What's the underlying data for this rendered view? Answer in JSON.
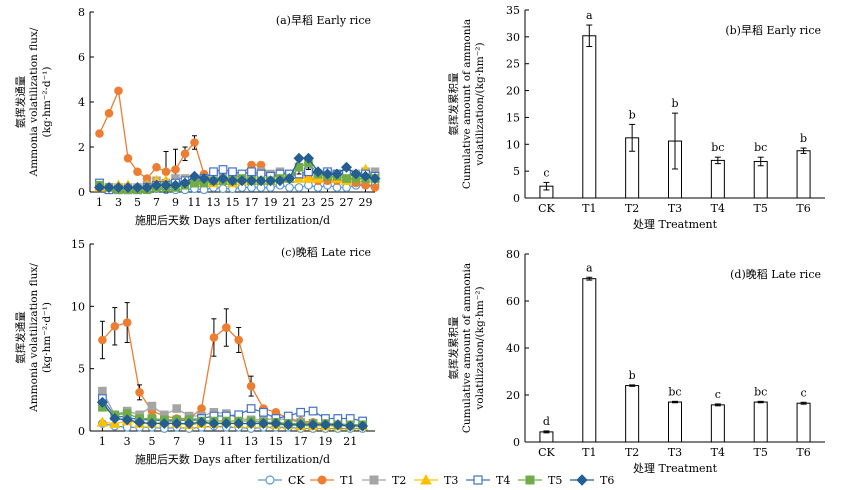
{
  "colors": {
    "CK": "#5b9bd5",
    "T1": "#ed7d31",
    "T2": "#a5a5a5",
    "T3": "#ffc000",
    "T4": "#4472c4",
    "T5": "#70ad47",
    "T6": "#255e91",
    "axis": "#000000",
    "bar_fill": "#ffffff"
  },
  "legend": {
    "items": [
      {
        "name": "CK",
        "marker": "circle-open"
      },
      {
        "name": "T1",
        "marker": "circle-filled"
      },
      {
        "name": "T2",
        "marker": "square-filled"
      },
      {
        "name": "T3",
        "marker": "triangle-filled"
      },
      {
        "name": "T4",
        "marker": "square-open"
      },
      {
        "name": "T5",
        "marker": "square-filled"
      },
      {
        "name": "T6",
        "marker": "diamond-filled"
      }
    ],
    "placement": "bottom-center"
  },
  "chart_data": [
    {
      "id": "a",
      "type": "line",
      "title": "(a)早稻 Early rice",
      "xlabel": "施肥后天数 Days after fertilization/d",
      "ylabel": [
        "氨挥发通量",
        "Ammonia volatilization flux/",
        "(kg·hm⁻²·d⁻¹)"
      ],
      "xlim": [
        0,
        30
      ],
      "ylim": [
        0,
        8
      ],
      "yticks": [
        0,
        2,
        4,
        6,
        8
      ],
      "xticks": [
        1,
        3,
        5,
        7,
        9,
        11,
        13,
        15,
        17,
        19,
        21,
        23,
        25,
        27,
        29
      ],
      "legend_placement": "bottom-center",
      "series": [
        {
          "name": "CK",
          "x": [
            1,
            2,
            3,
            4,
            5,
            6,
            7,
            8,
            9,
            10,
            11,
            12,
            13,
            14,
            15,
            16,
            17,
            18,
            19,
            20,
            21,
            22,
            23,
            24,
            25,
            26,
            27,
            28,
            29,
            30
          ],
          "values": [
            0.2,
            0.15,
            0.1,
            0.1,
            0.1,
            0.1,
            0.15,
            0.1,
            0.1,
            0.1,
            0.15,
            0.1,
            0.2,
            0.15,
            0.15,
            0.2,
            0.2,
            0.2,
            0.2,
            0.3,
            0.2,
            0.2,
            0.3,
            0.2,
            0.3,
            0.2,
            0.2,
            0.3,
            0.3,
            0.3
          ]
        },
        {
          "name": "T1",
          "x": [
            1,
            2,
            3,
            4,
            5,
            6,
            7,
            8,
            9,
            10,
            11,
            12,
            13,
            14,
            15,
            16,
            17,
            18,
            19,
            20,
            21,
            22,
            23,
            24,
            25,
            26,
            27,
            28,
            29,
            30
          ],
          "values": [
            2.6,
            3.5,
            4.5,
            1.5,
            0.9,
            0.6,
            1.1,
            0.9,
            1.0,
            1.7,
            2.2,
            0.8,
            0.5,
            0.5,
            0.6,
            0.8,
            1.2,
            1.2,
            0.7,
            0.7,
            0.6,
            0.9,
            0.6,
            0.5,
            0.5,
            0.5,
            0.5,
            0.4,
            0.3,
            0.2
          ],
          "errors": [
            0,
            0,
            0,
            0,
            0,
            0,
            0,
            0.9,
            0.9,
            0.3,
            0.3,
            0,
            0,
            0,
            0,
            0,
            0,
            0,
            0,
            0,
            0,
            0,
            0,
            0,
            0,
            0,
            0,
            0,
            0,
            0
          ]
        },
        {
          "name": "T2",
          "x": [
            1,
            2,
            3,
            4,
            5,
            6,
            7,
            8,
            9,
            10,
            11,
            12,
            13,
            14,
            15,
            16,
            17,
            18,
            19,
            20,
            21,
            22,
            23,
            24,
            25,
            26,
            27,
            28,
            29,
            30
          ],
          "values": [
            0.3,
            0.2,
            0.2,
            0.2,
            0.2,
            0.3,
            0.5,
            0.4,
            0.6,
            0.6,
            0.5,
            0.4,
            0.5,
            0.7,
            0.6,
            0.6,
            0.6,
            0.9,
            0.8,
            0.9,
            0.8,
            0.8,
            0.9,
            0.7,
            0.8,
            0.8,
            0.7,
            0.8,
            0.9,
            0.9
          ]
        },
        {
          "name": "T3",
          "x": [
            1,
            2,
            3,
            4,
            5,
            6,
            7,
            8,
            9,
            10,
            11,
            12,
            13,
            14,
            15,
            16,
            17,
            18,
            19,
            20,
            21,
            22,
            23,
            24,
            25,
            26,
            27,
            28,
            29,
            30
          ],
          "values": [
            0.2,
            0.2,
            0.3,
            0.3,
            0.2,
            0.3,
            0.5,
            0.5,
            0.4,
            0.5,
            0.5,
            0.4,
            0.4,
            0.5,
            0.4,
            0.5,
            0.6,
            0.5,
            0.5,
            0.6,
            0.6,
            0.6,
            0.6,
            0.6,
            0.7,
            0.6,
            0.5,
            0.6,
            1.0,
            0.6
          ]
        },
        {
          "name": "T4",
          "x": [
            1,
            2,
            3,
            4,
            5,
            6,
            7,
            8,
            9,
            10,
            11,
            12,
            13,
            14,
            15,
            16,
            17,
            18,
            19,
            20,
            21,
            22,
            23,
            24,
            25,
            26,
            27,
            28,
            29,
            30
          ],
          "values": [
            0.4,
            0.1,
            0.1,
            0.1,
            0.1,
            0.2,
            0.3,
            0.3,
            0.4,
            0.5,
            0.4,
            0.6,
            0.9,
            1.0,
            0.9,
            0.8,
            0.9,
            0.8,
            0.7,
            0.8,
            0.8,
            0.8,
            0.9,
            0.8,
            0.9,
            0.8,
            0.8,
            0.7,
            0.8,
            0.7
          ]
        },
        {
          "name": "T5",
          "x": [
            1,
            2,
            3,
            4,
            5,
            6,
            7,
            8,
            9,
            10,
            11,
            12,
            13,
            14,
            15,
            16,
            17,
            18,
            19,
            20,
            21,
            22,
            23,
            24,
            25,
            26,
            27,
            28,
            29,
            30
          ],
          "values": [
            0.3,
            0.2,
            0.1,
            0.1,
            0.1,
            0.1,
            0.2,
            0.2,
            0.2,
            0.3,
            0.4,
            0.4,
            0.5,
            0.5,
            0.5,
            0.6,
            0.5,
            0.5,
            0.5,
            0.6,
            0.6,
            1.1,
            1.3,
            0.8,
            0.7,
            0.7,
            0.6,
            0.6,
            0.6,
            0.6
          ],
          "errors": [
            0,
            0,
            0,
            0,
            0,
            0,
            0,
            0,
            0,
            0,
            0,
            0,
            0,
            0,
            0,
            0,
            0,
            0,
            0,
            0,
            0,
            0.3,
            0.3,
            0,
            0,
            0,
            0,
            0,
            0,
            0
          ]
        },
        {
          "name": "T6",
          "x": [
            1,
            2,
            3,
            4,
            5,
            6,
            7,
            8,
            9,
            10,
            11,
            12,
            13,
            14,
            15,
            16,
            17,
            18,
            19,
            20,
            21,
            22,
            23,
            24,
            25,
            26,
            27,
            28,
            29,
            30
          ],
          "values": [
            0.2,
            0.2,
            0.2,
            0.2,
            0.2,
            0.2,
            0.3,
            0.3,
            0.3,
            0.4,
            0.7,
            0.6,
            0.5,
            0.6,
            0.5,
            0.5,
            0.5,
            0.5,
            0.5,
            0.5,
            0.6,
            1.5,
            1.5,
            0.9,
            0.8,
            0.8,
            1.1,
            0.8,
            0.7,
            0.6
          ]
        }
      ]
    },
    {
      "id": "b",
      "type": "bar",
      "title": "(b)早稻 Early rice",
      "xlabel": "处理 Treatment",
      "ylabel": [
        "氨挥发累积量",
        "Cumulative amount of ammonia",
        "volatilization/(kg·hm⁻²)"
      ],
      "ylim": [
        0,
        35
      ],
      "yticks": [
        0,
        5,
        10,
        15,
        20,
        25,
        30,
        35
      ],
      "categories": [
        "CK",
        "T1",
        "T2",
        "T3",
        "T4",
        "T5",
        "T6"
      ],
      "values": [
        2.2,
        30.2,
        11.2,
        10.6,
        7.0,
        6.8,
        8.8
      ],
      "errors": [
        0.7,
        2.0,
        2.5,
        5.2,
        0.6,
        0.8,
        0.5
      ],
      "letters": [
        "c",
        "a",
        "b",
        "b",
        "bc",
        "bc",
        "b"
      ]
    },
    {
      "id": "c",
      "type": "line",
      "title": "(c)晚稻 Late rice",
      "xlabel": "施肥后天数 Days after fertilization/d",
      "ylabel": [
        "氨挥发通量",
        "Ammonia volatilization flux/",
        "(kg·hm⁻²·d⁻¹)"
      ],
      "xlim": [
        0,
        23
      ],
      "ylim": [
        0,
        15
      ],
      "yticks": [
        0,
        5,
        10,
        15
      ],
      "xticks": [
        1,
        3,
        5,
        7,
        9,
        11,
        13,
        15,
        17,
        19,
        21
      ],
      "legend_placement": "bottom-center",
      "series": [
        {
          "name": "CK",
          "x": [
            1,
            2,
            3,
            4,
            5,
            6,
            7,
            8,
            9,
            10,
            11,
            12,
            13,
            14,
            15,
            16,
            17,
            18,
            19,
            20,
            21,
            22
          ],
          "values": [
            0.6,
            0.4,
            0.3,
            0.3,
            0.3,
            0.2,
            0.3,
            0.2,
            0.3,
            0.4,
            0.3,
            0.3,
            0.2,
            0.3,
            0.3,
            0.3,
            0.2,
            0.2,
            0.2,
            0.2,
            0.2,
            0.2
          ]
        },
        {
          "name": "T1",
          "x": [
            1,
            2,
            3,
            4,
            5,
            6,
            7,
            8,
            9,
            10,
            11,
            12,
            13,
            14,
            15,
            16,
            17,
            18,
            19,
            20,
            21,
            22
          ],
          "values": [
            7.3,
            8.4,
            8.7,
            3.1,
            1.6,
            1.2,
            1.0,
            1.0,
            1.8,
            7.5,
            8.3,
            7.3,
            3.6,
            1.8,
            1.5,
            1.0,
            0.8,
            0.7,
            0.6,
            0.6,
            0.5,
            0.5
          ],
          "errors": [
            1.5,
            1.5,
            1.6,
            0.6,
            0.3,
            0,
            0,
            0,
            0,
            1.5,
            1.5,
            1.0,
            0.8,
            0,
            0,
            0,
            0,
            0,
            0,
            0,
            0,
            0
          ]
        },
        {
          "name": "T2",
          "x": [
            1,
            2,
            3,
            4,
            5,
            6,
            7,
            8,
            9,
            10,
            11,
            12,
            13,
            14,
            15,
            16,
            17,
            18,
            19,
            20,
            21,
            22
          ],
          "values": [
            3.2,
            1.3,
            1.6,
            1.3,
            2.0,
            1.3,
            1.8,
            1.2,
            1.2,
            1.5,
            1.4,
            1.0,
            0.9,
            0.9,
            1.0,
            0.9,
            0.7,
            0.6,
            0.6,
            0.6,
            0.5,
            0.5
          ]
        },
        {
          "name": "T3",
          "x": [
            1,
            2,
            3,
            4,
            5,
            6,
            7,
            8,
            9,
            10,
            11,
            12,
            13,
            14,
            15,
            16,
            17,
            18,
            19,
            20,
            21,
            22
          ],
          "values": [
            0.7,
            0.6,
            0.8,
            0.6,
            0.6,
            0.7,
            0.6,
            0.5,
            0.6,
            0.6,
            0.7,
            0.6,
            0.6,
            0.6,
            0.5,
            0.5,
            0.4,
            0.4,
            0.4,
            0.4,
            0.4,
            0.4
          ]
        },
        {
          "name": "T4",
          "x": [
            1,
            2,
            3,
            4,
            5,
            6,
            7,
            8,
            9,
            10,
            11,
            12,
            13,
            14,
            15,
            16,
            17,
            18,
            19,
            20,
            21,
            22
          ],
          "values": [
            2.6,
            1.2,
            1.1,
            0.9,
            0.9,
            0.8,
            0.8,
            0.9,
            1.0,
            1.2,
            1.2,
            1.3,
            1.8,
            1.5,
            1.0,
            1.2,
            1.5,
            1.6,
            1.0,
            1.0,
            1.0,
            0.8
          ]
        },
        {
          "name": "T5",
          "x": [
            1,
            2,
            3,
            4,
            5,
            6,
            7,
            8,
            9,
            10,
            11,
            12,
            13,
            14,
            15,
            16,
            17,
            18,
            19,
            20,
            21,
            22
          ],
          "values": [
            1.9,
            1.3,
            1.4,
            1.0,
            1.0,
            0.9,
            0.9,
            0.9,
            0.8,
            0.8,
            0.8,
            0.8,
            0.8,
            0.7,
            0.7,
            0.6,
            0.6,
            0.6,
            0.6,
            0.5,
            0.5,
            0.5
          ]
        },
        {
          "name": "T6",
          "x": [
            1,
            2,
            3,
            4,
            5,
            6,
            7,
            8,
            9,
            10,
            11,
            12,
            13,
            14,
            15,
            16,
            17,
            18,
            19,
            20,
            21,
            22
          ],
          "values": [
            2.3,
            1.0,
            0.9,
            0.7,
            0.6,
            0.6,
            0.6,
            0.6,
            0.7,
            0.6,
            0.6,
            0.6,
            0.6,
            0.6,
            0.6,
            0.5,
            0.5,
            0.5,
            0.5,
            0.5,
            0.4,
            0.4
          ]
        }
      ]
    },
    {
      "id": "d",
      "type": "bar",
      "title": "(d)晚稻 Late rice",
      "xlabel": "处理 Treatment",
      "ylabel": [
        "氨挥发累积量",
        "Cumulative amount of ammonia",
        "volatilization/(kg·hm⁻²)"
      ],
      "ylim": [
        0,
        80
      ],
      "yticks": [
        0,
        20,
        40,
        60,
        80
      ],
      "categories": [
        "CK",
        "T1",
        "T2",
        "T3",
        "T4",
        "T5",
        "T6"
      ],
      "values": [
        4.3,
        69.5,
        24.0,
        17.0,
        15.8,
        17.0,
        16.5
      ],
      "errors": [
        0.4,
        0.6,
        0.3,
        0.3,
        0.4,
        0.3,
        0.4
      ],
      "letters": [
        "d",
        "a",
        "b",
        "bc",
        "c",
        "bc",
        "c"
      ]
    }
  ]
}
